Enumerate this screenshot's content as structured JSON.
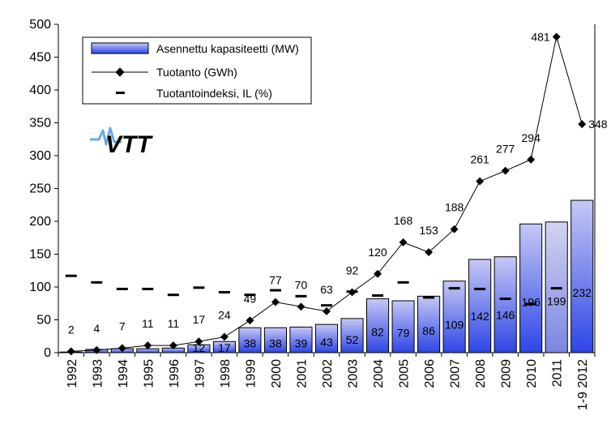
{
  "chart_data": {
    "type": "bar",
    "categories": [
      "1992",
      "1993",
      "1994",
      "1995",
      "1996",
      "1997",
      "1998",
      "1999",
      "2000",
      "2001",
      "2002",
      "2003",
      "2004",
      "2005",
      "2006",
      "2007",
      "2008",
      "2009",
      "2010",
      "2011",
      "1-9 2012"
    ],
    "series": [
      {
        "name": "Asennettu kapasiteetti (MW)",
        "type": "bar",
        "values": [
          1,
          5,
          6,
          6,
          7,
          12,
          17,
          38,
          38,
          39,
          43,
          52,
          82,
          79,
          86,
          109,
          142,
          146,
          196,
          199,
          232
        ],
        "labels": [
          "",
          "",
          "",
          "",
          "",
          "12",
          "17",
          "38",
          "38",
          "39",
          "43",
          "52",
          "82",
          "79",
          "86",
          "109",
          "142",
          "146",
          "196",
          "199",
          "232"
        ]
      },
      {
        "name": "Tuotanto (GWh)",
        "type": "line",
        "values": [
          2,
          4,
          7,
          11,
          11,
          17,
          24,
          49,
          77,
          70,
          63,
          92,
          120,
          168,
          153,
          188,
          261,
          277,
          294,
          481,
          348
        ],
        "labels": [
          "2",
          "4",
          "7",
          "11",
          "11",
          "17",
          "24",
          "49",
          "77",
          "70",
          "63",
          "92",
          "120",
          "168",
          "153",
          "188",
          "261",
          "277",
          "294",
          "481",
          "348"
        ]
      },
      {
        "name": "Tuotantoindeksi, IL (%)",
        "type": "marker",
        "values": [
          117,
          107,
          97,
          97,
          88,
          99,
          92,
          88,
          95,
          86,
          72,
          93,
          87,
          107,
          84,
          98,
          97,
          82,
          74,
          98,
          null
        ]
      }
    ],
    "ylim": [
      0,
      500
    ],
    "yticks": [
      "0",
      "50",
      "100",
      "150",
      "200",
      "250",
      "300",
      "350",
      "400",
      "450",
      "500"
    ],
    "grid": false,
    "legend": "top-left",
    "colors": {
      "bar_light": "#c6c8f4",
      "bar_dark": "#2d45e6",
      "bar_2011_light": "#d2d2f2",
      "bar_2011_dark": "#7a86e0",
      "line": "#000000"
    }
  },
  "logo": {
    "text": "VTT",
    "color": "#1b2a9a",
    "accent": "#6aa8e6"
  }
}
